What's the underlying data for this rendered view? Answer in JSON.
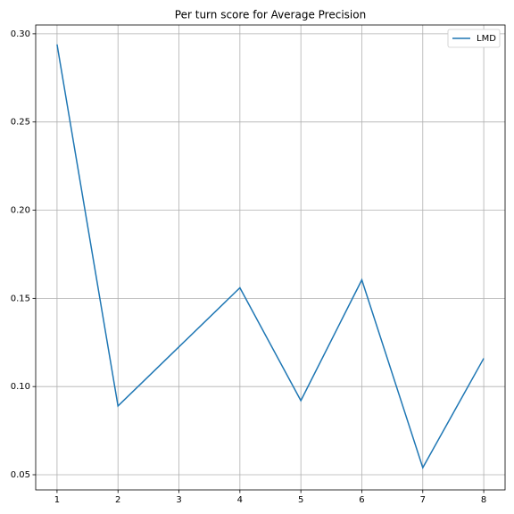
{
  "chart_data": {
    "type": "line",
    "title": "Per turn score for Average Precision",
    "x": [
      1,
      2,
      3,
      4,
      5,
      6,
      7,
      8
    ],
    "series": [
      {
        "name": "LMD",
        "color": "#1f77b4",
        "values": [
          0.294,
          0.089,
          0.1225,
          0.156,
          0.092,
          0.1605,
          0.054,
          0.116
        ]
      }
    ],
    "xlim": [
      0.65,
      8.35
    ],
    "xticks": [
      1,
      2,
      3,
      4,
      5,
      6,
      7,
      8
    ],
    "ylim": [
      0.0414,
      0.305
    ],
    "yticks": [
      {
        "value": 0.05,
        "label": "0.05"
      },
      {
        "value": 0.1,
        "label": "0.10"
      },
      {
        "value": 0.15,
        "label": "0.15"
      },
      {
        "value": 0.2,
        "label": "0.20"
      },
      {
        "value": 0.25,
        "label": "0.25"
      },
      {
        "value": 0.3,
        "label": "0.30"
      }
    ],
    "grid": true,
    "legend": "upper right"
  }
}
